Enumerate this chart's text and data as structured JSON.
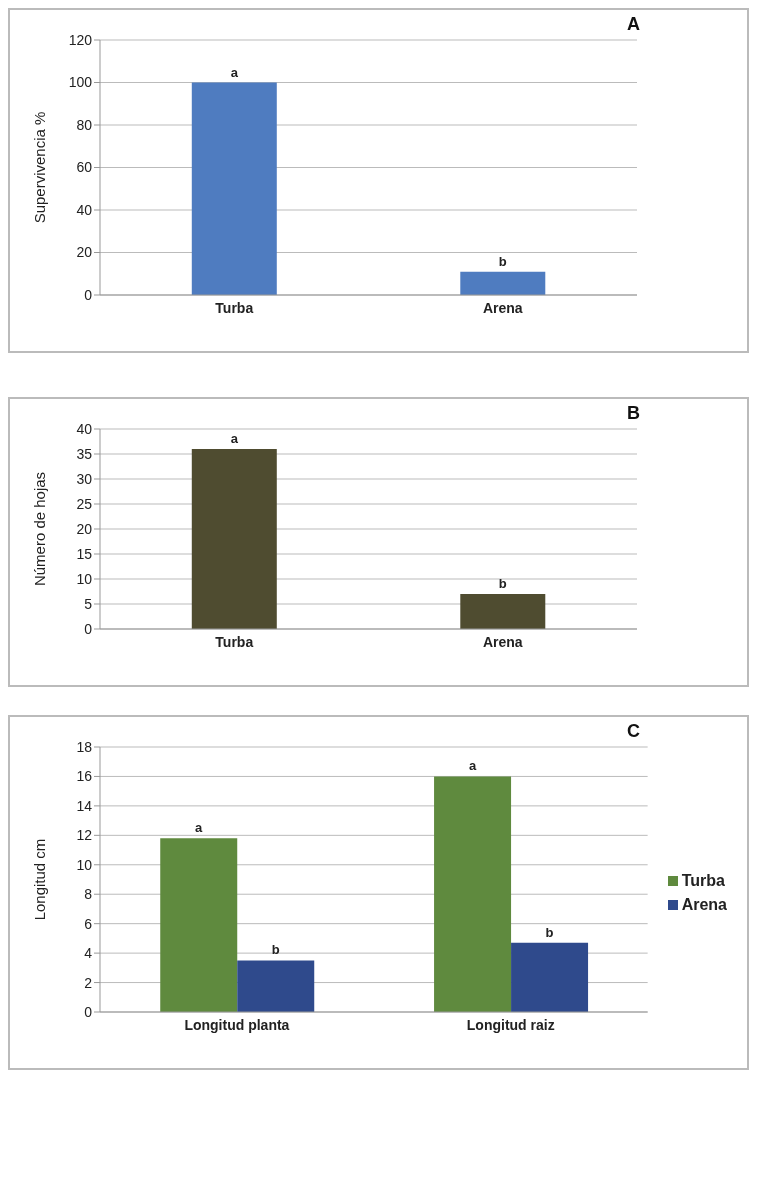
{
  "chart_data": [
    {
      "type": "bar",
      "title": "A",
      "ylabel": "Supervivencia %",
      "categories": [
        "Turba",
        "Arena"
      ],
      "values": [
        100,
        11
      ],
      "value_labels": [
        "a",
        "b"
      ],
      "color": "#4f7cc0",
      "ylim": [
        0,
        120
      ],
      "yticks": [
        0,
        20,
        40,
        60,
        80,
        100,
        120
      ],
      "grid": "y",
      "legend": false
    },
    {
      "type": "bar",
      "title": "B",
      "ylabel": "Número de hojas",
      "categories": [
        "Turba",
        "Arena"
      ],
      "values": [
        36,
        7
      ],
      "value_labels": [
        "a",
        "b"
      ],
      "color": "#4f4c30",
      "ylim": [
        0,
        40
      ],
      "yticks": [
        0,
        5,
        10,
        15,
        20,
        25,
        30,
        35,
        40
      ],
      "grid": "y",
      "legend": false
    },
    {
      "type": "bar",
      "title": "C",
      "ylabel": "Longitud cm",
      "categories": [
        "Longitud planta",
        "Longitud raiz"
      ],
      "series": [
        {
          "name": "Turba",
          "color": "#5f8a3e",
          "values": [
            11.8,
            16
          ],
          "value_labels": [
            "a",
            "a"
          ]
        },
        {
          "name": "Arena",
          "color": "#2f4a8c",
          "values": [
            3.5,
            4.7
          ],
          "value_labels": [
            "b",
            "b"
          ]
        }
      ],
      "ylim": [
        0,
        18
      ],
      "yticks": [
        0,
        2,
        4,
        6,
        8,
        10,
        12,
        14,
        16,
        18
      ],
      "grid": "y",
      "legend": "right"
    }
  ]
}
